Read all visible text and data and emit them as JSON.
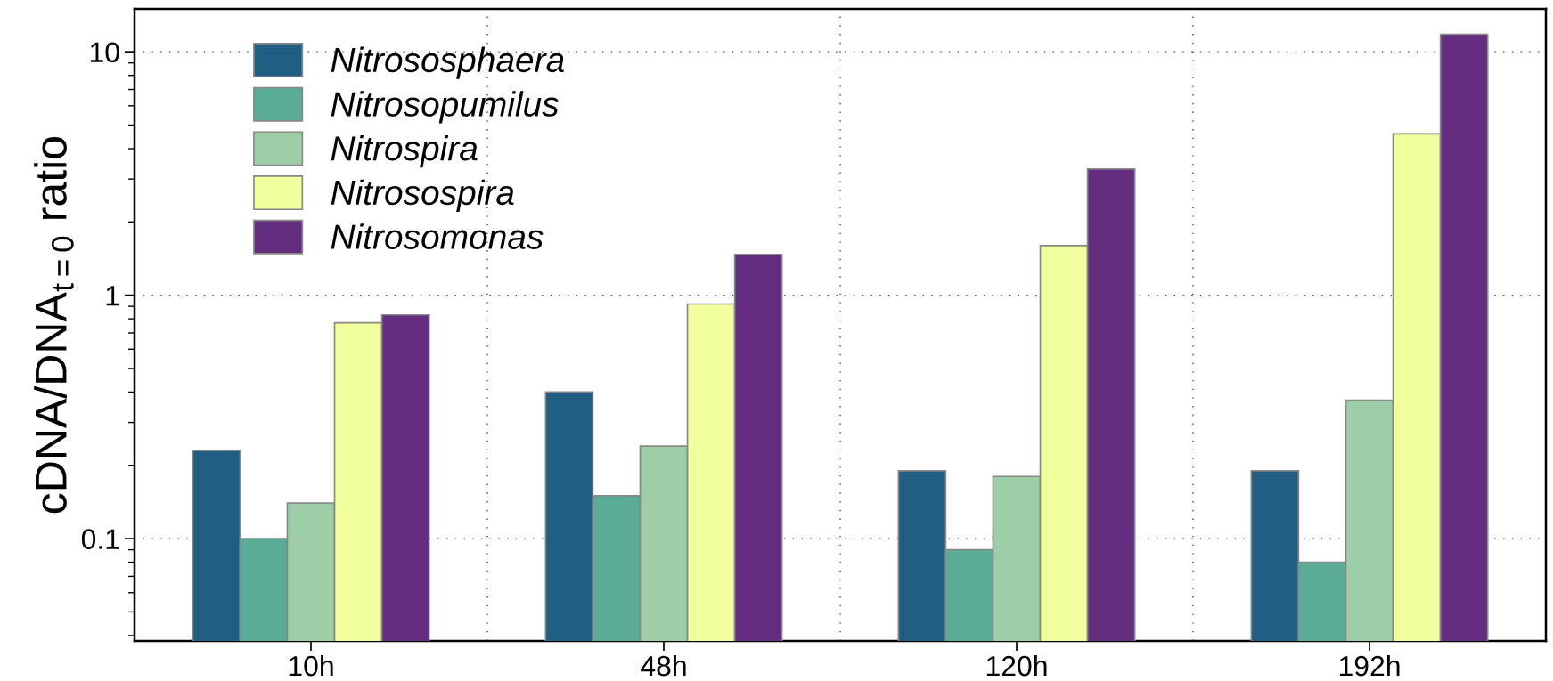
{
  "chart_data": {
    "type": "bar",
    "ylabel": "cDNA/DNA$_{t=0}$ ratio",
    "categories": [
      "10h",
      "48h",
      "120h",
      "192h"
    ],
    "series": [
      {
        "name": "Nitrososphaera",
        "color": "#205e83",
        "values": [
          0.23,
          0.4,
          0.19,
          0.19
        ]
      },
      {
        "name": "Nitrosopumilus",
        "color": "#5aac96",
        "values": [
          0.1,
          0.15,
          0.09,
          0.08
        ]
      },
      {
        "name": "Nitrospira",
        "color": "#9dcea7",
        "values": [
          0.14,
          0.24,
          0.18,
          0.37
        ]
      },
      {
        "name": "Nitrosospira",
        "color": "#f0fe9e",
        "values": [
          0.77,
          0.92,
          1.6,
          4.6
        ]
      },
      {
        "name": "Nitrosomonas",
        "color": "#652d80",
        "values": [
          0.83,
          1.47,
          3.3,
          11.8
        ]
      }
    ],
    "log": "y",
    "ylim": [
      0.038,
      15
    ],
    "yticks": [
      0.1,
      1,
      10
    ],
    "grid": true,
    "legend": "top left"
  }
}
